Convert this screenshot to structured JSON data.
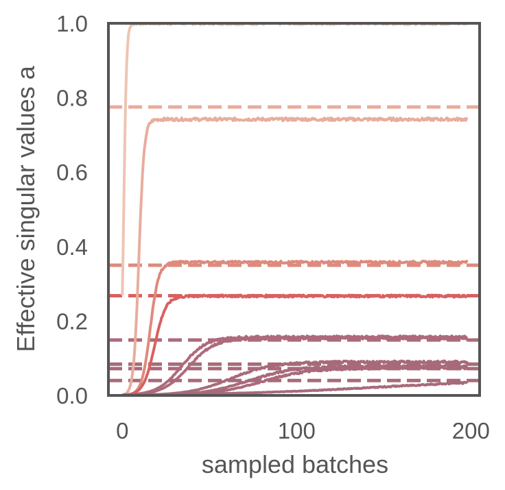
{
  "chart_data": {
    "type": "line",
    "title": "",
    "xlabel": "sampled batches",
    "ylabel": "Effective singular values a",
    "xlim": [
      -8,
      205
    ],
    "ylim": [
      0.0,
      1.0
    ],
    "xticks": [
      0,
      100,
      200
    ],
    "xtick_labels": [
      "0",
      "100",
      "200"
    ],
    "yticks": [
      0.0,
      0.2,
      0.4,
      0.6,
      0.8,
      1.0
    ],
    "ytick_labels": [
      "0.0",
      "0.2",
      "0.4",
      "0.6",
      "0.8",
      "1.0"
    ],
    "grid": false,
    "legend": "none",
    "x_end": 198,
    "targets": [
      {
        "value": 0.775,
        "color": "#e8ad9d"
      },
      {
        "value": 0.35,
        "color": "#de8a7c"
      },
      {
        "value": 0.268,
        "color": "#d96060"
      },
      {
        "value": 0.149,
        "color": "#ad6a7a"
      },
      {
        "value": 0.084,
        "color": "#a86a7a"
      },
      {
        "value": 0.072,
        "color": "#a86a7a"
      },
      {
        "value": 0.04,
        "color": "#a86a7a"
      }
    ],
    "series": [
      {
        "color": "#eec4b2",
        "plateau": 1.0,
        "midpoint": 0.8,
        "width": 0.8
      },
      {
        "color": "#e8ad9d",
        "plateau": 0.742,
        "midpoint": 9.5,
        "width": 1.5
      },
      {
        "color": "#de8a7c",
        "plateau": 0.358,
        "midpoint": 16.0,
        "width": 2.4
      },
      {
        "color": "#d96060",
        "plateau": 0.267,
        "midpoint": 18.5,
        "width": 3.2
      },
      {
        "color": "#ad6a7a",
        "plateau": 0.157,
        "midpoint": 34.0,
        "width": 7.0
      },
      {
        "color": "#ad6a7a",
        "plateau": 0.154,
        "midpoint": 38.0,
        "width": 7.5
      },
      {
        "color": "#a86a7a",
        "plateau": 0.09,
        "midpoint": 62.0,
        "width": 12.0
      },
      {
        "color": "#a86a7a",
        "plateau": 0.078,
        "midpoint": 72.0,
        "width": 13.0
      },
      {
        "color": "#a86a7a",
        "plateau": 0.074,
        "midpoint": 80.0,
        "width": 14.0
      },
      {
        "color": "#a86a7a",
        "plateau": 0.046,
        "midpoint": 150.0,
        "width": 45.0
      }
    ]
  }
}
